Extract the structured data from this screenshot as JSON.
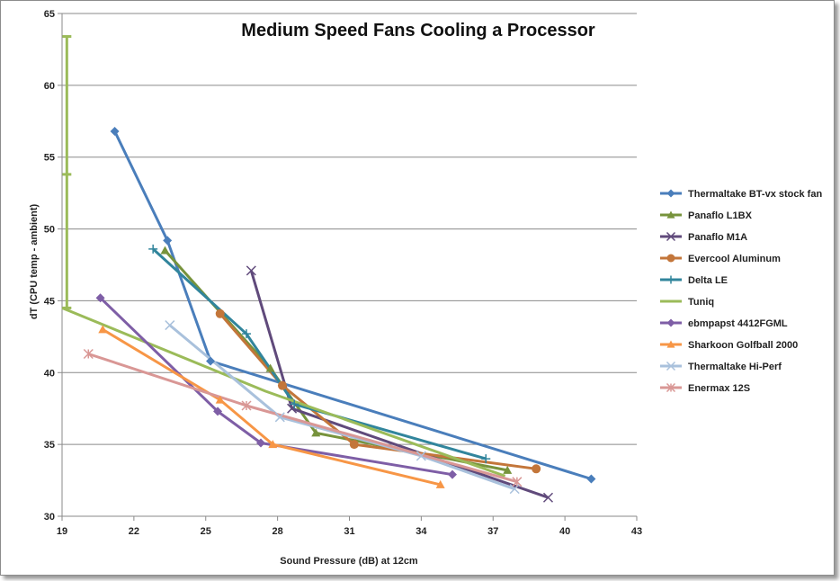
{
  "chart_data": {
    "type": "line",
    "title": "Medium Speed Fans Cooling a Processor",
    "xlabel": "Sound Pressure (dB) at 12cm",
    "ylabel": "dT (CPU temp - ambient)",
    "xlim": [
      19,
      43
    ],
    "ylim": [
      30,
      65
    ],
    "xticks": [
      "19",
      "22",
      "25",
      "28",
      "31",
      "34",
      "37",
      "40",
      "43"
    ],
    "yticks": [
      "30",
      "35",
      "40",
      "45",
      "50",
      "55",
      "60",
      "65"
    ],
    "grid": "horizontal",
    "legend_position": "right",
    "error_bar": {
      "x": 19.2,
      "y": [
        44.5,
        53.8,
        63.4
      ],
      "color": "#9bbb59"
    },
    "series": [
      {
        "name": "Thermaltake BT-vx  stock fan",
        "color": "#4a7ebb",
        "marker": "diamond",
        "points": [
          [
            21.2,
            56.8
          ],
          [
            23.4,
            49.2
          ],
          [
            25.2,
            40.8
          ],
          [
            41.1,
            32.6
          ]
        ]
      },
      {
        "name": "Panaflo L1BX",
        "color": "#77933c",
        "marker": "triangle",
        "points": [
          [
            23.3,
            48.5
          ],
          [
            27.7,
            40.3
          ],
          [
            29.6,
            35.8
          ],
          [
            37.6,
            33.2
          ]
        ]
      },
      {
        "name": "Panaflo M1A",
        "color": "#604a7b",
        "marker": "x",
        "points": [
          [
            26.9,
            47.1
          ],
          [
            28.6,
            37.5
          ],
          [
            39.3,
            31.3
          ]
        ]
      },
      {
        "name": "Evercool Aluminum",
        "color": "#c3763a",
        "marker": "circle",
        "points": [
          [
            25.6,
            44.1
          ],
          [
            28.2,
            39.1
          ],
          [
            31.2,
            35.0
          ],
          [
            38.8,
            33.3
          ]
        ]
      },
      {
        "name": "Delta LE",
        "color": "#31859c",
        "marker": "plus",
        "points": [
          [
            22.8,
            48.6
          ],
          [
            26.7,
            42.7
          ],
          [
            28.7,
            37.8
          ],
          [
            36.7,
            34.0
          ]
        ]
      },
      {
        "name": "Tuniq",
        "color": "#9bbb59",
        "marker": "none",
        "points": [
          [
            19.0,
            44.5
          ],
          [
            27.5,
            38.7
          ],
          [
            37.5,
            32.8
          ]
        ]
      },
      {
        "name": "ebmpapst 4412FGML",
        "color": "#7e5ea6",
        "marker": "diamond",
        "points": [
          [
            20.6,
            45.2
          ],
          [
            25.5,
            37.3
          ],
          [
            27.3,
            35.1
          ],
          [
            35.3,
            32.9
          ]
        ]
      },
      {
        "name": "Sharkoon Golfball  2000",
        "color": "#f79646",
        "marker": "triangle",
        "points": [
          [
            20.7,
            43.0
          ],
          [
            25.6,
            38.1
          ],
          [
            27.8,
            35.0
          ],
          [
            34.8,
            32.2
          ]
        ]
      },
      {
        "name": "Thermaltake Hi-Perf",
        "color": "#a9c1dc",
        "marker": "x",
        "points": [
          [
            23.5,
            43.3
          ],
          [
            28.1,
            36.9
          ],
          [
            34.0,
            34.2
          ],
          [
            37.9,
            31.9
          ]
        ]
      },
      {
        "name": "Enermax 12S",
        "color": "#d99795",
        "marker": "star",
        "points": [
          [
            20.1,
            41.3
          ],
          [
            26.7,
            37.7
          ],
          [
            38.0,
            32.4
          ]
        ]
      }
    ]
  }
}
